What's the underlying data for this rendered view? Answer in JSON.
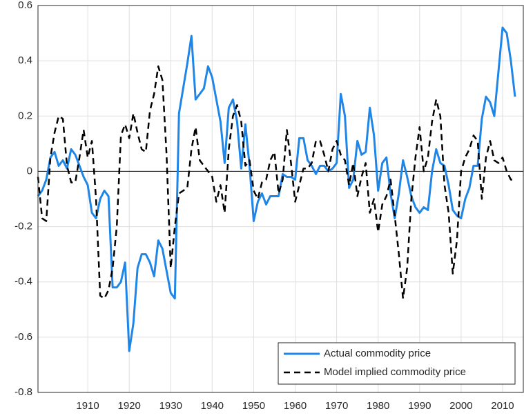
{
  "chart_data": {
    "type": "line",
    "x": [
      1898,
      1899,
      1900,
      1901,
      1902,
      1903,
      1904,
      1905,
      1906,
      1907,
      1908,
      1909,
      1910,
      1911,
      1912,
      1913,
      1914,
      1915,
      1916,
      1917,
      1918,
      1919,
      1920,
      1921,
      1922,
      1923,
      1924,
      1925,
      1926,
      1927,
      1928,
      1929,
      1930,
      1931,
      1932,
      1933,
      1934,
      1935,
      1936,
      1937,
      1938,
      1939,
      1940,
      1941,
      1942,
      1943,
      1944,
      1945,
      1946,
      1947,
      1948,
      1949,
      1950,
      1951,
      1952,
      1953,
      1954,
      1955,
      1956,
      1957,
      1958,
      1959,
      1960,
      1961,
      1962,
      1963,
      1964,
      1965,
      1966,
      1967,
      1968,
      1969,
      1970,
      1971,
      1972,
      1973,
      1974,
      1975,
      1976,
      1977,
      1978,
      1979,
      1980,
      1981,
      1982,
      1983,
      1984,
      1985,
      1986,
      1987,
      1988,
      1989,
      1990,
      1991,
      1992,
      1993,
      1994,
      1995,
      1996,
      1997,
      1998,
      1999,
      2000,
      2001,
      2002,
      2003,
      2004,
      2005,
      2006,
      2007,
      2008,
      2009,
      2010,
      2011,
      2012,
      2013
    ],
    "series": [
      {
        "name": "Actual commodity price",
        "color": "#1f86e8",
        "dash": false,
        "values": [
          -0.09,
          -0.07,
          -0.03,
          0.05,
          0.07,
          0.02,
          0.04,
          0.01,
          0.08,
          0.06,
          0.02,
          -0.02,
          -0.05,
          -0.15,
          -0.17,
          -0.1,
          -0.07,
          -0.09,
          -0.42,
          -0.42,
          -0.4,
          -0.33,
          -0.65,
          -0.55,
          -0.35,
          -0.3,
          -0.3,
          -0.33,
          -0.38,
          -0.25,
          -0.28,
          -0.36,
          -0.44,
          -0.46,
          0.21,
          0.3,
          0.39,
          0.49,
          0.26,
          0.28,
          0.3,
          0.38,
          0.34,
          0.26,
          0.18,
          0.03,
          0.23,
          0.26,
          0.18,
          0.01,
          0.17,
          0.02,
          -0.18,
          -0.11,
          -0.08,
          -0.12,
          -0.09,
          -0.09,
          -0.09,
          -0.01,
          -0.02,
          -0.02,
          -0.03,
          0.12,
          0.12,
          0.04,
          0.02,
          -0.01,
          0.02,
          0.02,
          0.0,
          0.01,
          0.03,
          0.28,
          0.2,
          -0.06,
          -0.03,
          0.11,
          0.06,
          0.07,
          0.23,
          0.13,
          -0.07,
          0.03,
          0.05,
          -0.08,
          -0.17,
          -0.08,
          0.04,
          -0.02,
          -0.09,
          -0.13,
          -0.15,
          -0.13,
          -0.14,
          0.0,
          0.08,
          0.03,
          0.02,
          -0.05,
          -0.14,
          -0.16,
          -0.17,
          -0.1,
          -0.06,
          0.02,
          0.02,
          0.19,
          0.27,
          0.25,
          0.2,
          0.36,
          0.52,
          0.5,
          0.4,
          0.27
        ]
      },
      {
        "name": "Model implied commodity price",
        "color": "#000000",
        "dash": true,
        "values": [
          -0.02,
          -0.17,
          -0.18,
          0.05,
          0.14,
          0.2,
          0.19,
          0.02,
          -0.04,
          -0.04,
          0.05,
          0.15,
          0.05,
          0.11,
          -0.1,
          -0.45,
          -0.46,
          -0.43,
          -0.35,
          -0.2,
          0.13,
          0.17,
          0.12,
          0.21,
          0.14,
          0.08,
          0.07,
          0.22,
          0.28,
          0.38,
          0.33,
          0.06,
          -0.35,
          -0.2,
          -0.08,
          -0.07,
          -0.06,
          0.08,
          0.16,
          0.04,
          0.02,
          0.0,
          -0.02,
          -0.11,
          -0.05,
          -0.15,
          0.08,
          0.2,
          0.24,
          0.18,
          0.02,
          0.04,
          -0.07,
          -0.1,
          -0.04,
          -0.03,
          0.04,
          0.07,
          -0.08,
          -0.03,
          0.15,
          0.03,
          -0.11,
          -0.05,
          0.01,
          0.01,
          0.03,
          0.11,
          0.11,
          0.06,
          0.0,
          0.08,
          0.11,
          0.06,
          0.04,
          -0.05,
          0.03,
          -0.09,
          -0.02,
          0.03,
          -0.15,
          -0.1,
          -0.22,
          -0.12,
          -0.09,
          -0.03,
          -0.16,
          -0.3,
          -0.46,
          -0.35,
          -0.1,
          0.05,
          0.16,
          0.0,
          0.05,
          0.18,
          0.26,
          0.2,
          -0.05,
          -0.15,
          -0.37,
          -0.25,
          0.0,
          0.05,
          0.08,
          0.13,
          0.11,
          -0.1,
          0.05,
          0.11,
          0.04,
          0.03,
          0.05,
          0.0,
          -0.03,
          -0.03
        ]
      }
    ],
    "xlim": [
      1898,
      2015
    ],
    "xticks": [
      1910,
      1920,
      1930,
      1940,
      1950,
      1960,
      1970,
      1980,
      1990,
      2000,
      2010
    ],
    "ylim": [
      -0.8,
      0.6
    ],
    "yticks": [
      -0.8,
      -0.6,
      -0.4,
      -0.2,
      0,
      0.2,
      0.4,
      0.6
    ],
    "grid": true,
    "zero_line": true,
    "legend": "lower right"
  }
}
